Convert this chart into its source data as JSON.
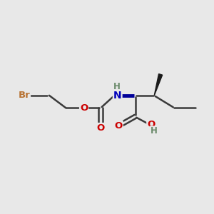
{
  "bg_color": "#e8e8e8",
  "atom_colors": {
    "Br": "#b87333",
    "O": "#cc0000",
    "N": "#0000bb",
    "C": "#3a3a3a",
    "H": "#6a8a6a"
  },
  "bond_color": "#3a3a3a",
  "nh_color": "#6a8a6a",
  "bold_bond_color": "#000080",
  "lw": 1.8,
  "fontsize": 9.5
}
